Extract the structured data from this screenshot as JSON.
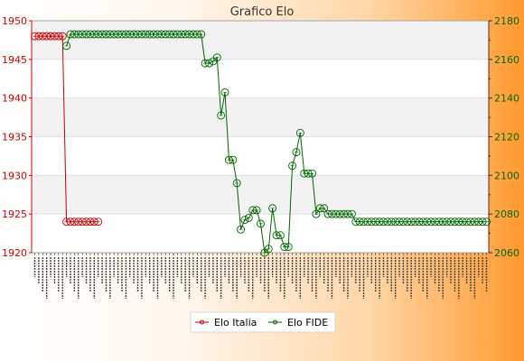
{
  "chart_data": {
    "type": "line",
    "title": "Grafico Elo",
    "grid": true,
    "legend_placement": "bottom-center",
    "colors": {
      "left_axis": "#cc0000",
      "right_axis": "#006600",
      "elo_italia": "#cc0000",
      "elo_fide": "#006600"
    },
    "y_left": {
      "min": 1920,
      "max": 1950,
      "ticks": [
        1920,
        1925,
        1930,
        1935,
        1940,
        1945,
        1950
      ]
    },
    "y_right": {
      "min": 2060,
      "max": 2180,
      "ticks": [
        2060,
        2080,
        2100,
        2120,
        2140,
        2160,
        2180
      ]
    },
    "x_count": 115,
    "series": [
      {
        "name": "Elo Italia",
        "axis": "left",
        "points": [
          [
            0,
            1948
          ],
          [
            1,
            1948
          ],
          [
            2,
            1948
          ],
          [
            3,
            1948
          ],
          [
            4,
            1948
          ],
          [
            5,
            1948
          ],
          [
            6,
            1948
          ],
          [
            7,
            1948
          ],
          [
            8,
            1924
          ],
          [
            9,
            1924
          ],
          [
            10,
            1924
          ],
          [
            11,
            1924
          ],
          [
            12,
            1924
          ],
          [
            13,
            1924
          ],
          [
            14,
            1924
          ],
          [
            15,
            1924
          ],
          [
            16,
            1924
          ]
        ]
      },
      {
        "name": "Elo FIDE",
        "axis": "right",
        "points": [
          [
            8,
            2167
          ],
          [
            9,
            2173
          ],
          [
            10,
            2173
          ],
          [
            11,
            2173
          ],
          [
            12,
            2173
          ],
          [
            13,
            2173
          ],
          [
            14,
            2173
          ],
          [
            15,
            2173
          ],
          [
            16,
            2173
          ],
          [
            17,
            2173
          ],
          [
            18,
            2173
          ],
          [
            19,
            2173
          ],
          [
            20,
            2173
          ],
          [
            21,
            2173
          ],
          [
            22,
            2173
          ],
          [
            23,
            2173
          ],
          [
            24,
            2173
          ],
          [
            25,
            2173
          ],
          [
            26,
            2173
          ],
          [
            27,
            2173
          ],
          [
            28,
            2173
          ],
          [
            29,
            2173
          ],
          [
            30,
            2173
          ],
          [
            31,
            2173
          ],
          [
            32,
            2173
          ],
          [
            33,
            2173
          ],
          [
            34,
            2173
          ],
          [
            35,
            2173
          ],
          [
            36,
            2173
          ],
          [
            37,
            2173
          ],
          [
            38,
            2173
          ],
          [
            39,
            2173
          ],
          [
            40,
            2173
          ],
          [
            41,
            2173
          ],
          [
            42,
            2173
          ],
          [
            43,
            2158
          ],
          [
            44,
            2158
          ],
          [
            45,
            2159
          ],
          [
            46,
            2161
          ],
          [
            47,
            2131
          ],
          [
            48,
            2143
          ],
          [
            49,
            2108
          ],
          [
            50,
            2108
          ],
          [
            51,
            2096
          ],
          [
            52,
            2072
          ],
          [
            53,
            2077
          ],
          [
            54,
            2078
          ],
          [
            55,
            2082
          ],
          [
            56,
            2082
          ],
          [
            57,
            2075
          ],
          [
            58,
            2060
          ],
          [
            59,
            2062
          ],
          [
            60,
            2083
          ],
          [
            61,
            2069
          ],
          [
            62,
            2069
          ],
          [
            63,
            2063
          ],
          [
            64,
            2063
          ],
          [
            65,
            2105
          ],
          [
            66,
            2112
          ],
          [
            67,
            2122
          ],
          [
            68,
            2101
          ],
          [
            69,
            2101
          ],
          [
            70,
            2101
          ],
          [
            71,
            2080
          ],
          [
            72,
            2083
          ],
          [
            73,
            2083
          ],
          [
            74,
            2080
          ],
          [
            75,
            2080
          ],
          [
            76,
            2080
          ],
          [
            77,
            2080
          ],
          [
            78,
            2080
          ],
          [
            79,
            2080
          ],
          [
            80,
            2080
          ],
          [
            81,
            2076
          ],
          [
            82,
            2076
          ],
          [
            83,
            2076
          ],
          [
            84,
            2076
          ],
          [
            85,
            2076
          ],
          [
            86,
            2076
          ],
          [
            87,
            2076
          ],
          [
            88,
            2076
          ],
          [
            89,
            2076
          ],
          [
            90,
            2076
          ],
          [
            91,
            2076
          ],
          [
            92,
            2076
          ],
          [
            93,
            2076
          ],
          [
            94,
            2076
          ],
          [
            95,
            2076
          ],
          [
            96,
            2076
          ],
          [
            97,
            2076
          ],
          [
            98,
            2076
          ],
          [
            99,
            2076
          ],
          [
            100,
            2076
          ],
          [
            101,
            2076
          ],
          [
            102,
            2076
          ],
          [
            103,
            2076
          ],
          [
            104,
            2076
          ],
          [
            105,
            2076
          ],
          [
            106,
            2076
          ],
          [
            107,
            2076
          ],
          [
            108,
            2076
          ],
          [
            109,
            2076
          ],
          [
            110,
            2076
          ],
          [
            111,
            2076
          ],
          [
            112,
            2076
          ],
          [
            113,
            2076
          ],
          [
            114,
            2076
          ]
        ]
      }
    ],
    "legend": [
      "Elo Italia",
      "Elo FIDE"
    ]
  }
}
